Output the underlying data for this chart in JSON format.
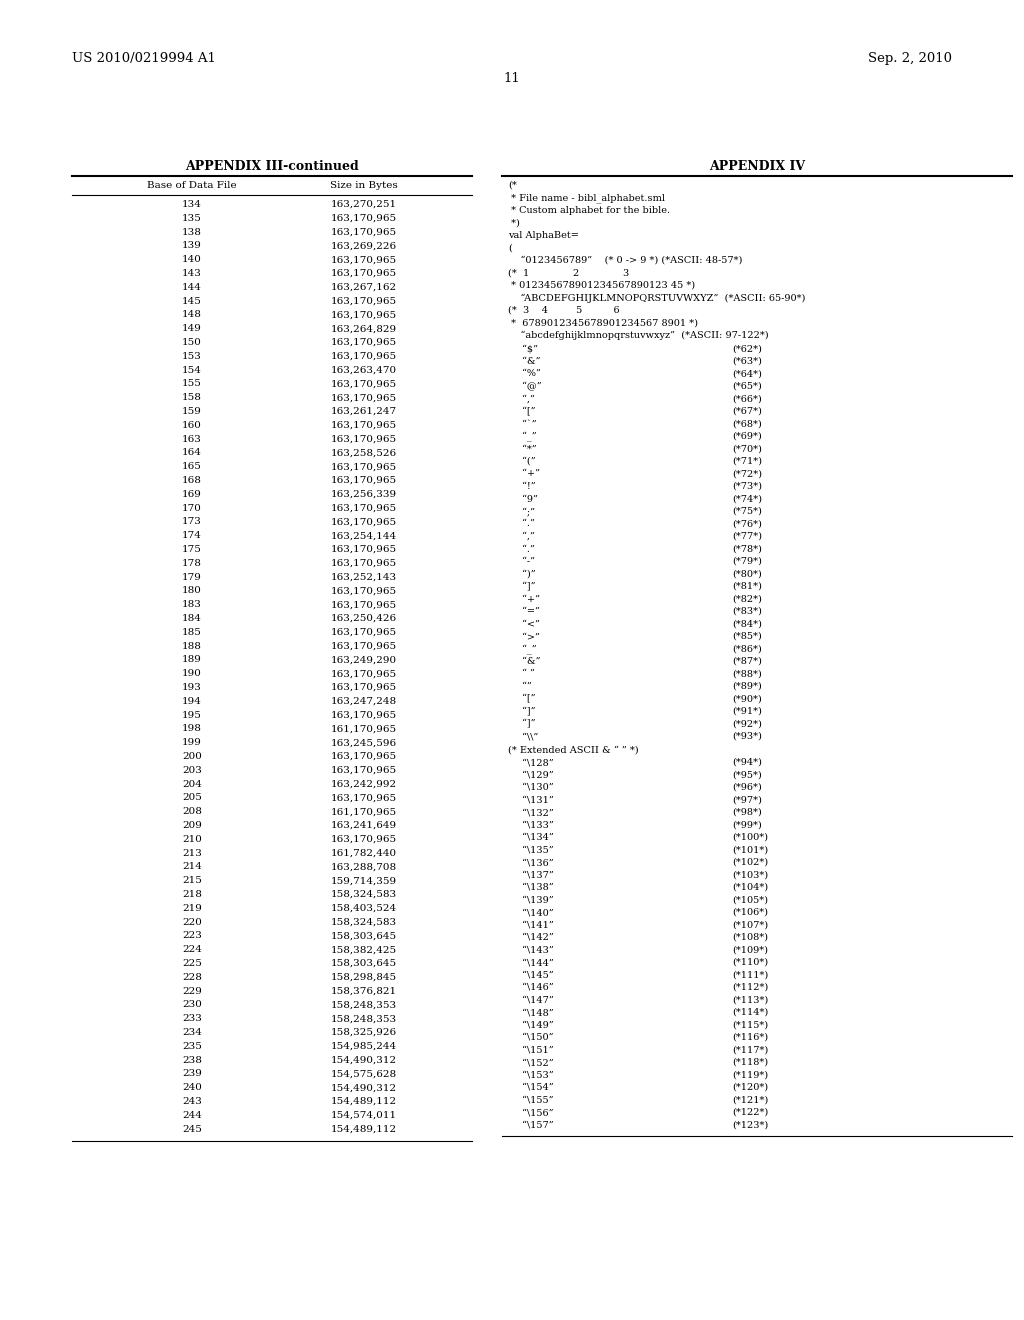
{
  "header_left": "US 2010/0219994 A1",
  "header_right": "Sep. 2, 2010",
  "page_number": "11",
  "appendix3_title": "APPENDIX III-continued",
  "appendix3_col1": "Base of Data File",
  "appendix3_col2": "Size in Bytes",
  "appendix3_data": [
    [
      "134",
      "163,270,251"
    ],
    [
      "135",
      "163,170,965"
    ],
    [
      "138",
      "163,170,965"
    ],
    [
      "139",
      "163,269,226"
    ],
    [
      "140",
      "163,170,965"
    ],
    [
      "143",
      "163,170,965"
    ],
    [
      "144",
      "163,267,162"
    ],
    [
      "145",
      "163,170,965"
    ],
    [
      "148",
      "163,170,965"
    ],
    [
      "149",
      "163,264,829"
    ],
    [
      "150",
      "163,170,965"
    ],
    [
      "153",
      "163,170,965"
    ],
    [
      "154",
      "163,263,470"
    ],
    [
      "155",
      "163,170,965"
    ],
    [
      "158",
      "163,170,965"
    ],
    [
      "159",
      "163,261,247"
    ],
    [
      "160",
      "163,170,965"
    ],
    [
      "163",
      "163,170,965"
    ],
    [
      "164",
      "163,258,526"
    ],
    [
      "165",
      "163,170,965"
    ],
    [
      "168",
      "163,170,965"
    ],
    [
      "169",
      "163,256,339"
    ],
    [
      "170",
      "163,170,965"
    ],
    [
      "173",
      "163,170,965"
    ],
    [
      "174",
      "163,254,144"
    ],
    [
      "175",
      "163,170,965"
    ],
    [
      "178",
      "163,170,965"
    ],
    [
      "179",
      "163,252,143"
    ],
    [
      "180",
      "163,170,965"
    ],
    [
      "183",
      "163,170,965"
    ],
    [
      "184",
      "163,250,426"
    ],
    [
      "185",
      "163,170,965"
    ],
    [
      "188",
      "163,170,965"
    ],
    [
      "189",
      "163,249,290"
    ],
    [
      "190",
      "163,170,965"
    ],
    [
      "193",
      "163,170,965"
    ],
    [
      "194",
      "163,247,248"
    ],
    [
      "195",
      "163,170,965"
    ],
    [
      "198",
      "161,170,965"
    ],
    [
      "199",
      "163,245,596"
    ],
    [
      "200",
      "163,170,965"
    ],
    [
      "203",
      "163,170,965"
    ],
    [
      "204",
      "163,242,992"
    ],
    [
      "205",
      "163,170,965"
    ],
    [
      "208",
      "161,170,965"
    ],
    [
      "209",
      "163,241,649"
    ],
    [
      "210",
      "163,170,965"
    ],
    [
      "213",
      "161,782,440"
    ],
    [
      "214",
      "163,288,708"
    ],
    [
      "215",
      "159,714,359"
    ],
    [
      "218",
      "158,324,583"
    ],
    [
      "219",
      "158,403,524"
    ],
    [
      "220",
      "158,324,583"
    ],
    [
      "223",
      "158,303,645"
    ],
    [
      "224",
      "158,382,425"
    ],
    [
      "225",
      "158,303,645"
    ],
    [
      "228",
      "158,298,845"
    ],
    [
      "229",
      "158,376,821"
    ],
    [
      "230",
      "158,248,353"
    ],
    [
      "233",
      "158,248,353"
    ],
    [
      "234",
      "158,325,926"
    ],
    [
      "235",
      "154,985,244"
    ],
    [
      "238",
      "154,490,312"
    ],
    [
      "239",
      "154,575,628"
    ],
    [
      "240",
      "154,490,312"
    ],
    [
      "243",
      "154,489,112"
    ],
    [
      "244",
      "154,574,011"
    ],
    [
      "245",
      "154,489,112"
    ]
  ],
  "appendix4_title": "APPENDIX IV",
  "code_lines": [
    "(*",
    " * File name - bibl_alphabet.sml",
    " * Custom alphabet for the bible.",
    " *)",
    "val AlphaBet=",
    "(",
    "    “0123456789”    (* 0 -> 9 *) (*ASCII: 48-57*)",
    "(*  1              2              3",
    " * 012345678901234567890123 45 *)",
    "    “ABCDEFGHIJKLMNOPQRSTUVWXYZ”  (*ASCII: 65-90*)",
    "(*  3    4         5          6",
    " *  6789012345678901234567 8901 *)",
    "    “abcdefghijklmnopqrstuvwxyz”  (*ASCII: 97-122*)"
  ],
  "char_entries": [
    [
      "“$”",
      "(*62*)"
    ],
    [
      "“&”",
      "(*63*)"
    ],
    [
      "“%”",
      "(*64*)"
    ],
    [
      "“@”",
      "(*65*)"
    ],
    [
      "“,”",
      "(*66*)"
    ],
    [
      "“[”",
      "(*67*)"
    ],
    [
      "“`”",
      "(*68*)"
    ],
    [
      "“_”",
      "(*69*)"
    ],
    [
      "“*”",
      "(*70*)"
    ],
    [
      "“(”",
      "(*71*)"
    ],
    [
      "“+”",
      "(*72*)"
    ],
    [
      "“!”",
      "(*73*)"
    ],
    [
      "“9”",
      "(*74*)"
    ],
    [
      "“;”",
      "(*75*)"
    ],
    [
      "“.”",
      "(*76*)"
    ],
    [
      "“,”",
      "(*77*)"
    ],
    [
      "“.”",
      "(*78*)"
    ],
    [
      "“-”",
      "(*79*)"
    ],
    [
      "“)”",
      "(*80*)"
    ],
    [
      "“]”",
      "(*81*)"
    ],
    [
      "“+”",
      "(*82*)"
    ],
    [
      "“=”",
      "(*83*)"
    ],
    [
      "“<”",
      "(*84*)"
    ],
    [
      "“>”",
      "(*85*)"
    ],
    [
      "“_”",
      "(*86*)"
    ],
    [
      "“&”",
      "(*87*)"
    ],
    [
      "“ ”",
      "(*88*)"
    ],
    [
      "“”",
      "(*89*)"
    ],
    [
      "“[”",
      "(*90*)"
    ],
    [
      "“]”",
      "(*91*)"
    ],
    [
      "“]”",
      "(*92*)"
    ],
    [
      "“\\\\”",
      "(*93*)"
    ]
  ],
  "extended_header": "(* Extended ASCII & “ ” *)",
  "ext_entries": [
    [
      "“\\128”",
      "(*94*)"
    ],
    [
      "“\\129”",
      "(*95*)"
    ],
    [
      "“\\130”",
      "(*96*)"
    ],
    [
      "“\\131”",
      "(*97*)"
    ],
    [
      "“\\132”",
      "(*98*)"
    ],
    [
      "“\\133”",
      "(*99*)"
    ],
    [
      "“\\134”",
      "(*100*)"
    ],
    [
      "“\\135”",
      "(*101*)"
    ],
    [
      "“\\136”",
      "(*102*)"
    ],
    [
      "“\\137”",
      "(*103*)"
    ],
    [
      "“\\138”",
      "(*104*)"
    ],
    [
      "“\\139”",
      "(*105*)"
    ],
    [
      "“\\140”",
      "(*106*)"
    ],
    [
      "“\\141”",
      "(*107*)"
    ],
    [
      "“\\142”",
      "(*108*)"
    ],
    [
      "“\\143”",
      "(*109*)"
    ],
    [
      "“\\144”",
      "(*110*)"
    ],
    [
      "“\\145”",
      "(*111*)"
    ],
    [
      "“\\146”",
      "(*112*)"
    ],
    [
      "“\\147”",
      "(*113*)"
    ],
    [
      "“\\148”",
      "(*114*)"
    ],
    [
      "“\\149”",
      "(*115*)"
    ],
    [
      "“\\150”",
      "(*116*)"
    ],
    [
      "“\\151”",
      "(*117*)"
    ],
    [
      "“\\152”",
      "(*118*)"
    ],
    [
      "“\\153”",
      "(*119*)"
    ],
    [
      "“\\154”",
      "(*120*)"
    ],
    [
      "“\\155”",
      "(*121*)"
    ],
    [
      "“\\156”",
      "(*122*)"
    ],
    [
      "“\\157”",
      "(*123*)"
    ]
  ]
}
